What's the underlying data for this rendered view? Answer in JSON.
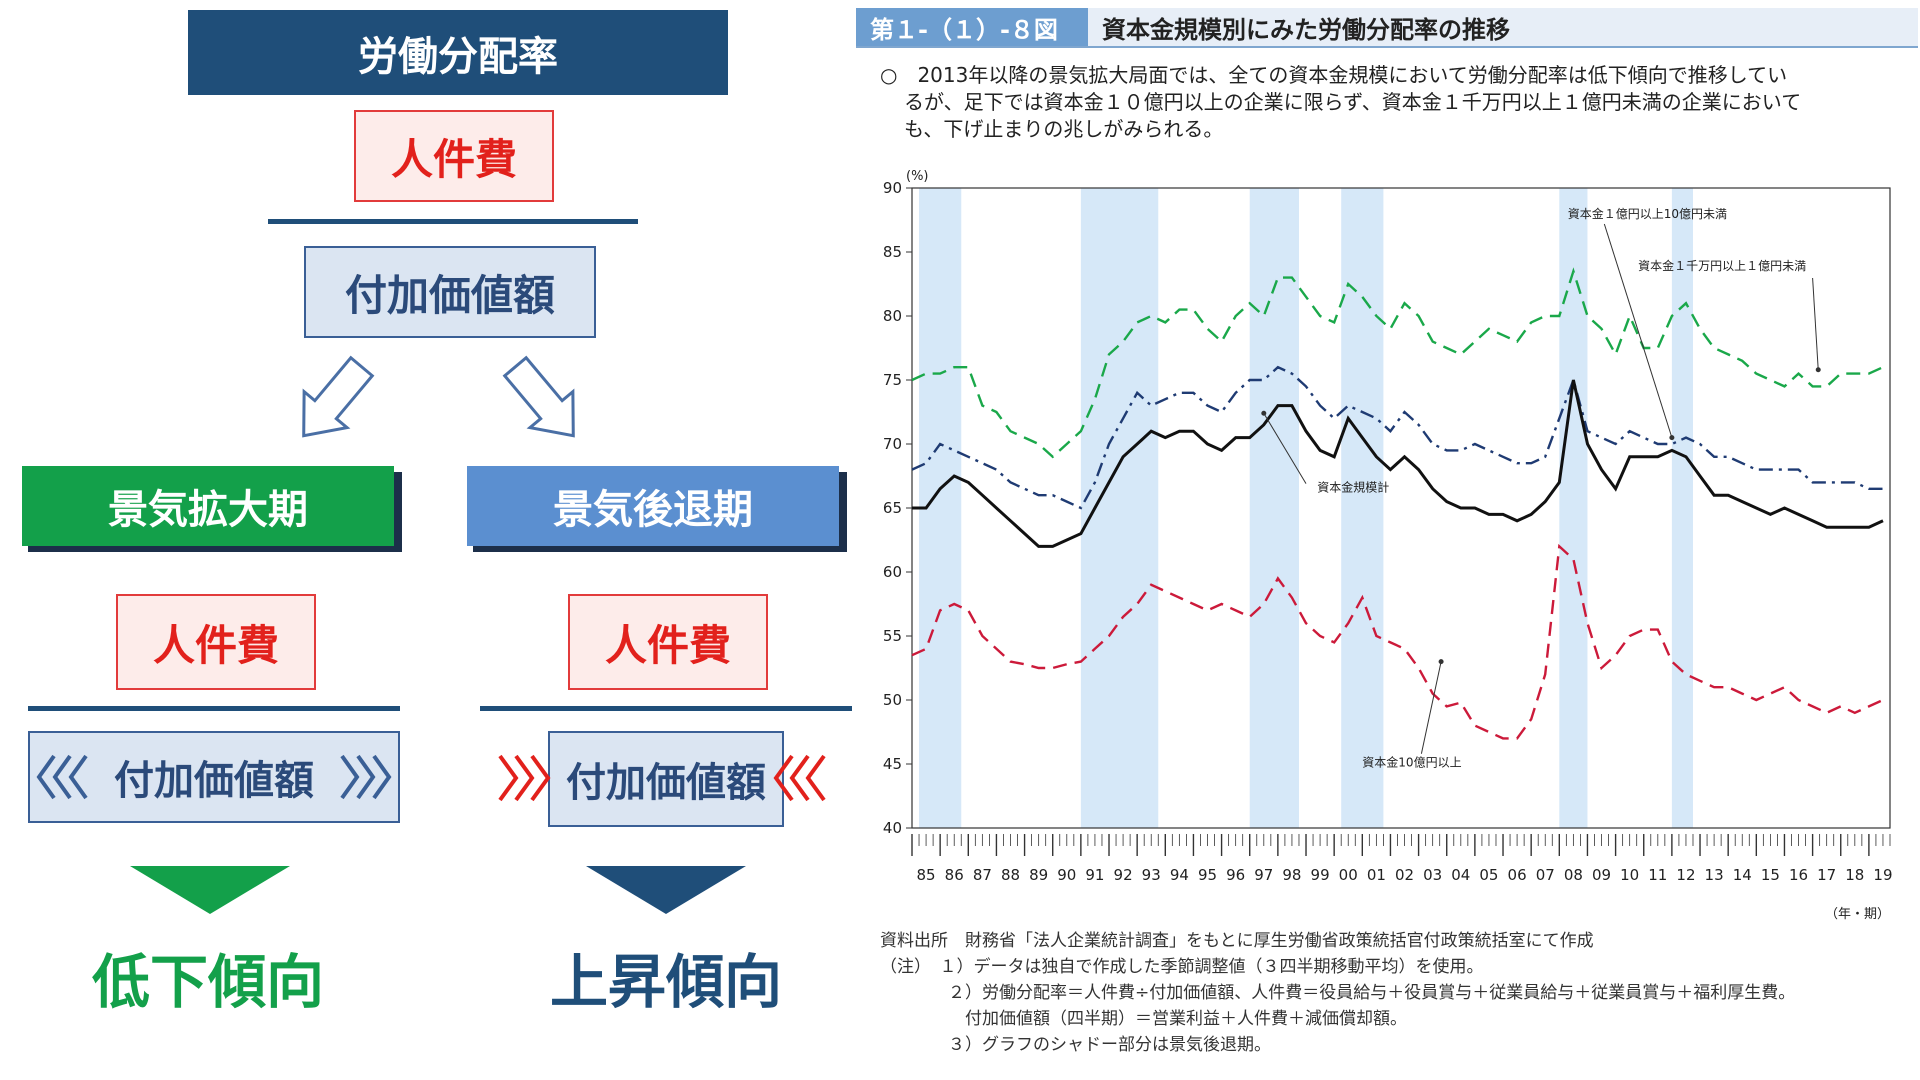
{
  "left": {
    "title": "労働分配率",
    "numerator": "人件費",
    "denominator": "付加価値額",
    "expansion": {
      "label": "景気拡大期",
      "numerator": "人件費",
      "denominator": "付加価値額",
      "trend": "低下傾向"
    },
    "recession": {
      "label": "景気後退期",
      "numerator": "人件費",
      "denominator": "付加価値額",
      "trend": "上昇傾向"
    }
  },
  "figure": {
    "number": "第１-（１）-８図",
    "title": "資本金規模別にみた労働分配率の推移",
    "summary_lines": [
      "○　2013年以降の景気拡大局面では、全ての資本金規模において労働分配率は低下傾向で推移してい",
      "るが、足下では資本金１０億円以上の企業に限らず、資本金１千万円以上１億円未満の企業において",
      "も、下げ止まりの兆しがみられる。"
    ],
    "notes": [
      "資料出所　財務省「法人企業統計調査」をもとに厚生労働省政策統括官付政策統括室にて作成",
      "（注）　１）データは独自で作成した季節調整値（３四半期移動平均）を使用。",
      "　　　　２）労働分配率＝人件費÷付加価値額、人件費＝役員給与＋役員賞与＋従業員給与＋従業員賞与＋福利厚生費。",
      "　　　　　付加価値額（四半期）＝営業利益＋人件費＋減価償却額。",
      "　　　　３）グラフのシャドー部分は景気後退期。"
    ]
  },
  "colors": {
    "navy": "#1f4e79",
    "green": "#1aa84a",
    "mid_blue": "#5b8fd0",
    "red": "#e2211c",
    "shade": "#d6e8f8"
  },
  "chart_data": {
    "type": "line",
    "y_unit_label": "(%)",
    "x_unit_label": "（年・期）",
    "ylim": [
      40,
      90
    ],
    "y_ticks": [
      40,
      45,
      50,
      55,
      60,
      65,
      70,
      75,
      80,
      85,
      90
    ],
    "xlim": [
      1985.0,
      2019.75
    ],
    "x_tick_labels": [
      "85",
      "86",
      "87",
      "88",
      "89",
      "90",
      "91",
      "92",
      "93",
      "94",
      "95",
      "96",
      "97",
      "98",
      "99",
      "00",
      "01",
      "02",
      "03",
      "04",
      "05",
      "06",
      "07",
      "08",
      "09",
      "10",
      "11",
      "12",
      "13",
      "14",
      "15",
      "16",
      "17",
      "18",
      "19"
    ],
    "recession_periods": [
      [
        1985.25,
        1986.75
      ],
      [
        1991.0,
        1993.75
      ],
      [
        1997.0,
        1998.75
      ],
      [
        2000.25,
        2001.75
      ],
      [
        2008.0,
        2009.0
      ],
      [
        2012.0,
        2012.75
      ]
    ],
    "series": [
      {
        "name": "資本金１千万円以上１億円未満",
        "style": "dashed",
        "color": "#1aa84a",
        "x": [
          1985,
          1985.5,
          1986,
          1986.5,
          1987,
          1987.5,
          1988,
          1988.5,
          1989,
          1989.5,
          1990,
          1990.5,
          1991,
          1991.5,
          1992,
          1992.5,
          1993,
          1993.5,
          1994,
          1994.5,
          1995,
          1995.5,
          1996,
          1996.5,
          1997,
          1997.5,
          1998,
          1998.5,
          1999,
          1999.5,
          2000,
          2000.5,
          2001,
          2001.5,
          2002,
          2002.5,
          2003,
          2003.5,
          2004,
          2004.5,
          2005,
          2005.5,
          2006,
          2006.5,
          2007,
          2007.5,
          2008,
          2008.5,
          2009,
          2009.5,
          2010,
          2010.5,
          2011,
          2011.5,
          2012,
          2012.5,
          2013,
          2013.5,
          2014,
          2014.5,
          2015,
          2015.5,
          2016,
          2016.5,
          2017,
          2017.5,
          2018,
          2018.5,
          2019,
          2019.5
        ],
        "y": [
          75,
          75.5,
          75.5,
          76,
          76,
          73,
          72.5,
          71,
          70.5,
          70,
          69,
          70,
          71,
          73.5,
          77,
          78,
          79.5,
          80,
          79.5,
          80.5,
          80.5,
          79,
          78,
          80,
          81,
          80,
          83,
          83,
          81.5,
          80,
          79.5,
          82.5,
          81.5,
          80,
          79,
          81,
          80,
          78,
          77.5,
          77,
          78,
          79,
          78.5,
          78,
          79.5,
          80,
          80,
          83.5,
          80,
          79,
          77,
          80,
          77.5,
          77.5,
          80,
          81,
          79,
          77.5,
          77,
          76.5,
          75.5,
          75,
          74.5,
          75.5,
          74.5,
          74.5,
          75.5,
          75.5,
          75.5,
          76
        ]
      },
      {
        "name": "資本金１億円以上10億円未満",
        "style": "dashdot",
        "color": "#1f3b73",
        "x": [
          1985,
          1985.5,
          1986,
          1986.5,
          1987,
          1987.5,
          1988,
          1988.5,
          1989,
          1989.5,
          1990,
          1990.5,
          1991,
          1991.5,
          1992,
          1992.5,
          1993,
          1993.5,
          1994,
          1994.5,
          1995,
          1995.5,
          1996,
          1996.5,
          1997,
          1997.5,
          1998,
          1998.5,
          1999,
          1999.5,
          2000,
          2000.5,
          2001,
          2001.5,
          2002,
          2002.5,
          2003,
          2003.5,
          2004,
          2004.5,
          2005,
          2005.5,
          2006,
          2006.5,
          2007,
          2007.5,
          2008,
          2008.5,
          2009,
          2009.5,
          2010,
          2010.5,
          2011,
          2011.5,
          2012,
          2012.5,
          2013,
          2013.5,
          2014,
          2014.5,
          2015,
          2015.5,
          2016,
          2016.5,
          2017,
          2017.5,
          2018,
          2018.5,
          2019,
          2019.5
        ],
        "y": [
          68,
          68.5,
          70,
          69.5,
          69,
          68.5,
          68,
          67,
          66.5,
          66,
          66,
          65.5,
          65,
          67,
          70,
          72,
          74,
          73,
          73.5,
          74,
          74,
          73,
          72.5,
          74,
          75,
          75,
          76,
          75.5,
          74.5,
          73,
          72,
          73,
          72.5,
          72,
          71,
          72.5,
          71.5,
          70,
          69.5,
          69.5,
          70,
          69.5,
          69,
          68.5,
          68.5,
          69,
          72,
          75,
          71,
          70.5,
          70,
          71,
          70.5,
          70,
          70,
          70.5,
          70,
          69,
          69,
          68.5,
          68,
          68,
          68,
          68,
          67,
          67,
          67,
          67,
          66.5,
          66.5
        ]
      },
      {
        "name": "資本金規模計",
        "style": "solid",
        "color": "#111111",
        "x": [
          1985,
          1985.5,
          1986,
          1986.5,
          1987,
          1987.5,
          1988,
          1988.5,
          1989,
          1989.5,
          1990,
          1990.5,
          1991,
          1991.5,
          1992,
          1992.5,
          1993,
          1993.5,
          1994,
          1994.5,
          1995,
          1995.5,
          1996,
          1996.5,
          1997,
          1997.5,
          1998,
          1998.5,
          1999,
          1999.5,
          2000,
          2000.5,
          2001,
          2001.5,
          2002,
          2002.5,
          2003,
          2003.5,
          2004,
          2004.5,
          2005,
          2005.5,
          2006,
          2006.5,
          2007,
          2007.5,
          2008,
          2008.5,
          2009,
          2009.5,
          2010,
          2010.5,
          2011,
          2011.5,
          2012,
          2012.5,
          2013,
          2013.5,
          2014,
          2014.5,
          2015,
          2015.5,
          2016,
          2016.5,
          2017,
          2017.5,
          2018,
          2018.5,
          2019,
          2019.5
        ],
        "y": [
          65,
          65,
          66.5,
          67.5,
          67,
          66,
          65,
          64,
          63,
          62,
          62,
          62.5,
          63,
          65,
          67,
          69,
          70,
          71,
          70.5,
          71,
          71,
          70,
          69.5,
          70.5,
          70.5,
          71.5,
          73,
          73,
          71,
          69.5,
          69,
          72,
          70.5,
          69,
          68,
          69,
          68,
          66.5,
          65.5,
          65,
          65,
          64.5,
          64.5,
          64,
          64.5,
          65.5,
          67,
          75,
          70,
          68,
          66.5,
          69,
          69,
          69,
          69.5,
          69,
          67.5,
          66,
          66,
          65.5,
          65,
          64.5,
          65,
          64.5,
          64,
          63.5,
          63.5,
          63.5,
          63.5,
          64
        ]
      },
      {
        "name": "資本金10億円以上",
        "style": "dashed",
        "color": "#cc1a3a",
        "x": [
          1985,
          1985.5,
          1986,
          1986.5,
          1987,
          1987.5,
          1988,
          1988.5,
          1989,
          1989.5,
          1990,
          1990.5,
          1991,
          1991.5,
          1992,
          1992.5,
          1993,
          1993.5,
          1994,
          1994.5,
          1995,
          1995.5,
          1996,
          1996.5,
          1997,
          1997.5,
          1998,
          1998.5,
          1999,
          1999.5,
          2000,
          2000.5,
          2001,
          2001.5,
          2002,
          2002.5,
          2003,
          2003.5,
          2004,
          2004.5,
          2005,
          2005.5,
          2006,
          2006.5,
          2007,
          2007.5,
          2008,
          2008.5,
          2009,
          2009.5,
          2010,
          2010.5,
          2011,
          2011.5,
          2012,
          2012.5,
          2013,
          2013.5,
          2014,
          2014.5,
          2015,
          2015.5,
          2016,
          2016.5,
          2017,
          2017.5,
          2018,
          2018.5,
          2019,
          2019.5
        ],
        "y": [
          53.5,
          54,
          57,
          57.5,
          57,
          55,
          54,
          53,
          52.8,
          52.5,
          52.5,
          52.8,
          53,
          54,
          55,
          56.5,
          57.5,
          59,
          58.5,
          58,
          57.5,
          57,
          57.5,
          57,
          56.5,
          57.5,
          59.5,
          58,
          56,
          55,
          54.5,
          56,
          58,
          55,
          54.5,
          54,
          52.5,
          50.5,
          49.5,
          49.8,
          48,
          47.5,
          47,
          47,
          48.5,
          52,
          62,
          61,
          56,
          52.5,
          53.5,
          55,
          55.5,
          55.5,
          53,
          52,
          51.5,
          51,
          51,
          50.5,
          50,
          50.5,
          51,
          50,
          49.5,
          49,
          49.5,
          49,
          49.5,
          50
        ]
      }
    ],
    "annotations": [
      "資本金１億円以上10億円未満",
      "資本金１千万円以上１億円未満",
      "資本金規模計",
      "資本金10億円以上"
    ]
  }
}
